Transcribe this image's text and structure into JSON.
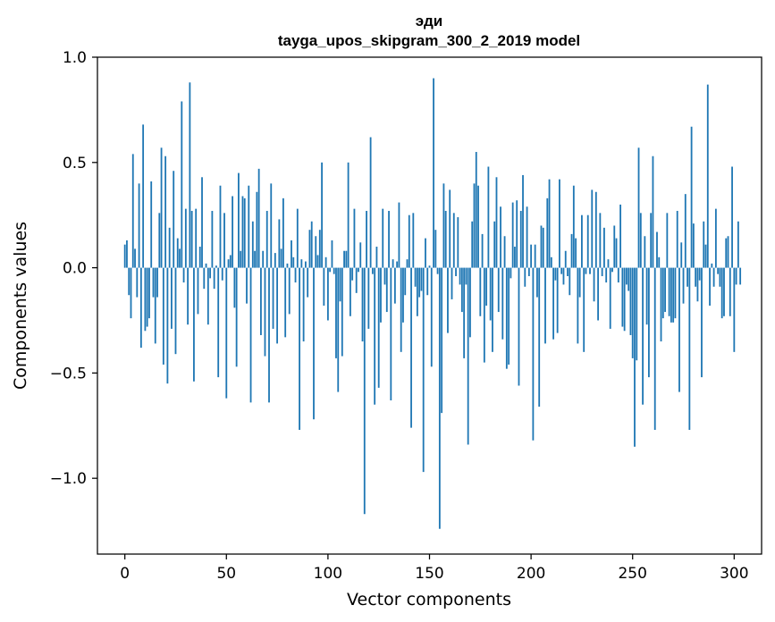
{
  "chart_data": {
    "type": "bar",
    "title": "эди",
    "subtitle": "tayga_upos_skipgram_300_2_2019 model",
    "xlabel": "Vector components",
    "ylabel": "Components values",
    "xlim": [
      -13.5,
      313.5
    ],
    "ylim": [
      -1.36,
      1.0
    ],
    "xticks": [
      0,
      50,
      100,
      150,
      200,
      250,
      300
    ],
    "yticks": [
      1.0,
      0.5,
      0.0,
      -0.5,
      -1.0
    ],
    "ytick_labels": [
      "1.0",
      "0.5",
      "0.0",
      "−0.5",
      "−1.0"
    ],
    "bar_color": "#1f77b4",
    "values": [
      0.11,
      0.13,
      -0.13,
      -0.24,
      0.54,
      0.09,
      -0.14,
      0.4,
      -0.38,
      0.68,
      -0.3,
      -0.28,
      -0.24,
      0.41,
      -0.14,
      -0.36,
      -0.14,
      0.26,
      0.57,
      -0.46,
      0.53,
      -0.55,
      0.19,
      -0.29,
      0.46,
      -0.41,
      0.14,
      0.09,
      0.79,
      -0.07,
      0.28,
      -0.27,
      0.88,
      0.27,
      -0.54,
      0.28,
      -0.22,
      0.1,
      0.43,
      -0.1,
      0.02,
      -0.27,
      -0.05,
      0.27,
      -0.1,
      0.01,
      -0.52,
      0.39,
      -0.06,
      0.26,
      -0.62,
      0.04,
      0.06,
      0.34,
      -0.19,
      -0.47,
      0.45,
      0.08,
      0.34,
      0.33,
      -0.17,
      0.39,
      -0.64,
      0.22,
      0.08,
      0.36,
      0.47,
      -0.32,
      0.08,
      -0.42,
      0.27,
      -0.64,
      0.4,
      -0.29,
      0.07,
      -0.36,
      0.23,
      0.09,
      0.33,
      -0.33,
      0.02,
      -0.22,
      0.13,
      0.05,
      -0.07,
      0.28,
      -0.77,
      0.04,
      -0.35,
      0.03,
      -0.14,
      0.18,
      0.22,
      -0.72,
      0.15,
      0.06,
      0.18,
      0.5,
      -0.18,
      0.05,
      -0.25,
      -0.02,
      0.13,
      -0.03,
      -0.43,
      -0.59,
      -0.16,
      -0.42,
      0.08,
      0.08,
      0.5,
      -0.23,
      -0.06,
      0.28,
      -0.12,
      -0.02,
      0.12,
      -0.35,
      -1.17,
      0.27,
      -0.29,
      0.62,
      -0.03,
      -0.65,
      0.1,
      -0.57,
      -0.26,
      0.28,
      -0.08,
      -0.21,
      0.27,
      -0.63,
      0.04,
      -0.17,
      0.03,
      0.31,
      -0.4,
      -0.26,
      -0.13,
      0.04,
      0.25,
      -0.76,
      0.26,
      -0.09,
      -0.23,
      -0.14,
      -0.11,
      -0.97,
      0.14,
      -0.13,
      0.01,
      -0.47,
      0.9,
      0.18,
      -0.03,
      -1.24,
      -0.69,
      0.4,
      0.27,
      -0.31,
      0.37,
      -0.15,
      0.26,
      -0.04,
      0.24,
      -0.08,
      -0.21,
      -0.43,
      -0.08,
      -0.84,
      -0.33,
      0.22,
      0.4,
      0.55,
      0.39,
      -0.23,
      0.16,
      -0.45,
      -0.18,
      0.48,
      -0.25,
      -0.4,
      0.22,
      0.43,
      -0.21,
      0.29,
      -0.34,
      0.15,
      -0.48,
      -0.46,
      -0.05,
      0.31,
      0.1,
      0.32,
      -0.56,
      0.27,
      0.44,
      -0.09,
      0.29,
      -0.04,
      0.11,
      -0.82,
      0.11,
      -0.14,
      -0.66,
      0.2,
      0.19,
      -0.36,
      0.33,
      0.42,
      0.05,
      -0.34,
      -0.06,
      -0.31,
      0.42,
      -0.03,
      -0.08,
      0.08,
      -0.04,
      -0.13,
      0.16,
      0.39,
      0.14,
      -0.36,
      -0.14,
      0.25,
      -0.4,
      -0.03,
      0.25,
      -0.03,
      0.37,
      -0.16,
      0.36,
      -0.25,
      0.26,
      -0.04,
      0.19,
      -0.07,
      0.04,
      -0.29,
      -0.02,
      0.2,
      0.14,
      -0.07,
      0.3,
      -0.28,
      -0.3,
      -0.08,
      -0.11,
      -0.32,
      -0.43,
      -0.85,
      -0.44,
      0.57,
      0.26,
      -0.65,
      0.15,
      -0.27,
      -0.52,
      0.26,
      0.53,
      -0.77,
      0.17,
      0.05,
      -0.35,
      -0.24,
      -0.21,
      0.26,
      -0.23,
      -0.26,
      -0.26,
      -0.24,
      0.27,
      -0.59,
      0.12,
      -0.17,
      0.35,
      -0.09,
      -0.77,
      0.67,
      0.21,
      -0.09,
      -0.16,
      -0.06,
      -0.52,
      0.22,
      0.11,
      0.87,
      -0.18,
      0.02,
      -0.09,
      0.28,
      -0.03,
      -0.09,
      -0.24,
      -0.23,
      0.14,
      0.15,
      -0.23,
      0.48,
      -0.4,
      -0.08,
      0.22,
      -0.08
    ]
  }
}
